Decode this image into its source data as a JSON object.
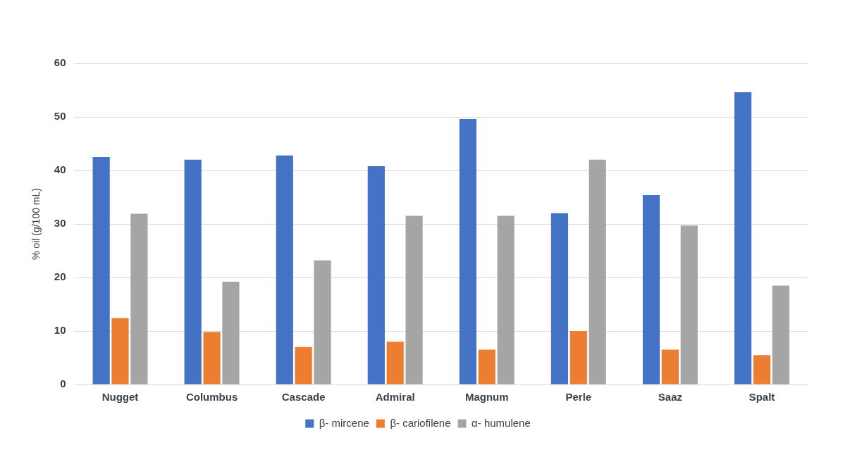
{
  "chart_data": {
    "type": "bar",
    "ylabel": "% oil (g/100 mL)",
    "categories": [
      "Nugget",
      "Columbus",
      "Cascade",
      "Admiral",
      "Magnum",
      "Perle",
      "Saaz",
      "Spalt"
    ],
    "series": [
      {
        "name": "β- mircene",
        "color": "#4472c4",
        "values": [
          42.5,
          42,
          42.8,
          40.8,
          49.6,
          32,
          35.4,
          54.6
        ]
      },
      {
        "name": "β- cariofilene",
        "color": "#ed7d31",
        "values": [
          12.4,
          9.8,
          7,
          8,
          6.5,
          10,
          6.5,
          5.5
        ]
      },
      {
        "name": "α- humulene",
        "color": "#a5a5a5",
        "values": [
          31.9,
          19.2,
          23.2,
          31.5,
          31.5,
          42,
          29.7,
          18.5
        ]
      }
    ],
    "ylim": [
      0,
      60
    ],
    "yticks": [
      0,
      10,
      20,
      30,
      40,
      50,
      60
    ],
    "grid": "y",
    "legend": "bottom"
  }
}
